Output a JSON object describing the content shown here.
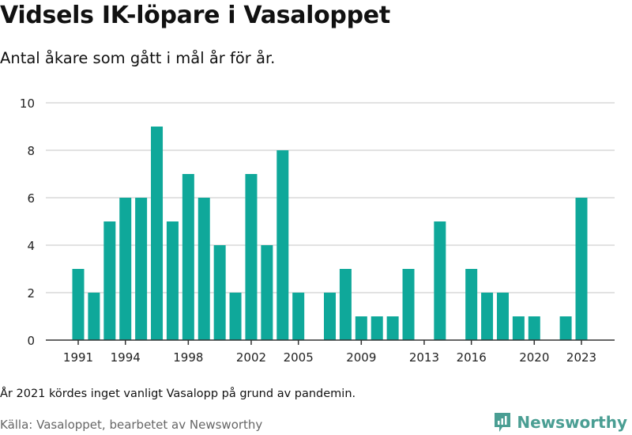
{
  "header": {
    "title": "Vidsels IK-löpare i Vasaloppet",
    "subtitle": "Antal åkare som gått i mål år för år."
  },
  "footer": {
    "note": "År 2021 kördes inget vanligt Vasalopp på grund av pandemin.",
    "source": "Källa: Vasaloppet, bearbetet av Newsworthy",
    "brand": "Newsworthy"
  },
  "colors": {
    "bar": "#0fa89a",
    "grid": "#d9d9d9",
    "axis": "#333333",
    "brand": "#4a9e93"
  },
  "chart_data": {
    "type": "bar",
    "x": [
      1991,
      1992,
      1993,
      1994,
      1995,
      1996,
      1997,
      1998,
      1999,
      2000,
      2001,
      2002,
      2003,
      2004,
      2005,
      2006,
      2007,
      2008,
      2009,
      2010,
      2011,
      2012,
      2013,
      2014,
      2015,
      2016,
      2017,
      2018,
      2019,
      2020,
      2021,
      2022,
      2023
    ],
    "values": [
      3,
      2,
      5,
      6,
      6,
      9,
      5,
      7,
      6,
      4,
      2,
      7,
      4,
      8,
      2,
      0,
      2,
      3,
      1,
      1,
      1,
      3,
      0,
      5,
      0,
      3,
      2,
      2,
      1,
      1,
      0,
      1,
      6
    ],
    "x_ticks": [
      "1991",
      "1994",
      "1998",
      "2002",
      "2005",
      "2009",
      "2013",
      "2016",
      "2020",
      "2023"
    ],
    "y_ticks": [
      "0",
      "2",
      "4",
      "6",
      "8",
      "10"
    ],
    "ylim": [
      0,
      10
    ],
    "grid": true
  }
}
